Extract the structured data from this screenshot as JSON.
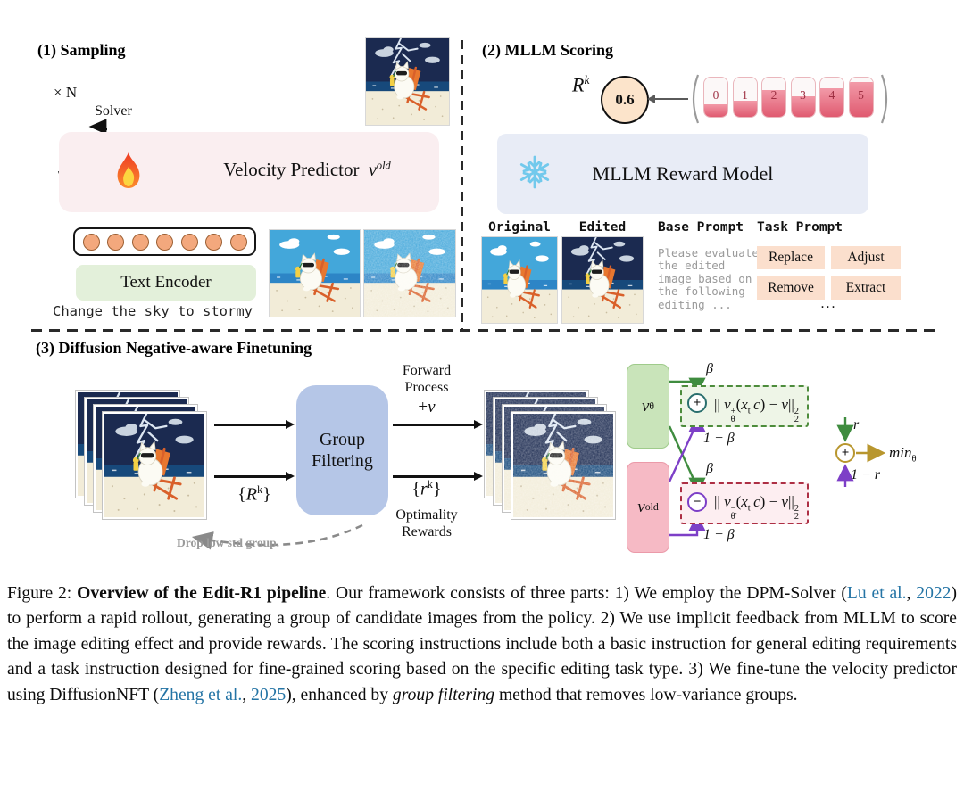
{
  "colors": {
    "velocity_box": "#faeef0",
    "encoder_box": "#e3f0da",
    "token_fill": "#f3a87d",
    "reward_model_box": "#e8ecf6",
    "group_filter_box": "#b5c6e7",
    "vtheta_box": "#c9e4ba",
    "vold_box": "#f6bac5",
    "positive_green": "#4d8c3c",
    "negative_red": "#ad2f44",
    "purple_line": "#7d3fc7",
    "gold": "#b8962e",
    "score_red": "#e05a70",
    "citation_blue": "#2474a5",
    "score_circle_fill": "#fce4cb",
    "task_button": "#fbdfcd"
  },
  "panel1": {
    "title": "(1) Sampling",
    "loop_label": "× N",
    "solver_label": "Solver",
    "velocity_label": "Velocity Predictor",
    "velocity_symbol": [
      {
        "k": "i",
        "t": "v"
      },
      {
        "k": "sup",
        "t": "old"
      }
    ],
    "fire_icon": "flame",
    "tokens_count": 7,
    "text_encoder_label": "Text Encoder",
    "prompt_text": "Change the sky to stormy",
    "top_image": "stormy-clean",
    "bottom_image_left": "day-clean",
    "bottom_image_right": "day-noisy"
  },
  "panel2": {
    "title": "(2) MLLM Scoring",
    "reward_symbol": [
      {
        "k": "i",
        "t": "R"
      },
      {
        "k": "sup",
        "t": "k"
      }
    ],
    "reward_value": "0.6",
    "score_boxes": [
      {
        "label": "0",
        "fill": 32
      },
      {
        "label": "1",
        "fill": 42
      },
      {
        "label": "2",
        "fill": 68
      },
      {
        "label": "3",
        "fill": 52
      },
      {
        "label": "4",
        "fill": 72
      },
      {
        "label": "5",
        "fill": 88
      }
    ],
    "reward_model_label": "MLLM Reward Model",
    "snowflake_icon": "snowflake",
    "original_label": "Original",
    "edited_label": "Edited",
    "original_image": "day-clean",
    "edited_image": "stormy-clean",
    "base_prompt_label": "Base Prompt",
    "base_prompt_text": "Please evaluate\nthe edited\nimage based on\nthe following\nediting ...",
    "task_prompt_label": "Task Prompt",
    "task_buttons": [
      "Replace",
      "Adjust",
      "Remove",
      "Extract"
    ],
    "task_more": "..."
  },
  "panel3": {
    "title": "(3) Diffusion Negative-aware Finetuning",
    "input_stack": "stormy-clean",
    "noised_stack": "stormy-noisy",
    "group_filtering_label": "Group Filtering",
    "rewards_in": [
      {
        "k": "n",
        "t": "{"
      },
      {
        "k": "i",
        "t": "R"
      },
      {
        "k": "sup",
        "t": "k"
      },
      {
        "k": "n",
        "t": "}"
      }
    ],
    "forward_label": "Forward Process",
    "plus_v": [
      {
        "k": "n",
        "t": "+"
      },
      {
        "k": "i",
        "t": "v"
      }
    ],
    "rewards_out": [
      {
        "k": "n",
        "t": "{"
      },
      {
        "k": "i",
        "t": "r"
      },
      {
        "k": "sup",
        "t": "k"
      },
      {
        "k": "n",
        "t": "}"
      }
    ],
    "optimality_label": "Optimality Rewards",
    "drop_label": "Drop low std group.",
    "vtheta": [
      {
        "k": "i",
        "t": "v"
      },
      {
        "k": "sub",
        "t": "θ"
      }
    ],
    "vold": [
      {
        "k": "i",
        "t": "v"
      },
      {
        "k": "sup",
        "t": "old"
      }
    ],
    "beta": "β",
    "one_minus_beta": "1 − β",
    "formula_pos": [
      {
        "k": "n",
        "t": "|| "
      },
      {
        "k": "i",
        "t": "v"
      },
      {
        "k": "ss",
        "up": "+",
        "dn": "θ"
      },
      {
        "k": "n",
        "t": "("
      },
      {
        "k": "i",
        "t": "x"
      },
      {
        "k": "sub",
        "t": "t"
      },
      {
        "k": "n",
        "t": "|"
      },
      {
        "k": "i",
        "t": "c"
      },
      {
        "k": "n",
        "t": ") − "
      },
      {
        "k": "i",
        "t": "v"
      },
      {
        "k": "n",
        "t": "||"
      },
      {
        "k": "ss",
        "up": "2",
        "dn": "2"
      }
    ],
    "formula_neg": [
      {
        "k": "n",
        "t": "|| "
      },
      {
        "k": "i",
        "t": "v"
      },
      {
        "k": "ss",
        "up": "−",
        "dn": "θ̄"
      },
      {
        "k": "n",
        "t": "("
      },
      {
        "k": "i",
        "t": "x"
      },
      {
        "k": "sub",
        "t": "t"
      },
      {
        "k": "n",
        "t": "|"
      },
      {
        "k": "i",
        "t": "c"
      },
      {
        "k": "n",
        "t": ") − "
      },
      {
        "k": "i",
        "t": "v"
      },
      {
        "k": "n",
        "t": "||"
      },
      {
        "k": "ss",
        "up": "2",
        "dn": "2"
      }
    ],
    "r_label": "r",
    "one_minus_r": "1 − r",
    "min_label": [
      {
        "k": "i",
        "t": "min"
      },
      {
        "k": "sub",
        "t": "θ"
      }
    ],
    "plus_op": "+",
    "minus_op": "−"
  },
  "caption": {
    "segments": [
      {
        "t": "Figure 2: ",
        "s": "n"
      },
      {
        "t": "Overview of the Edit-R1 pipeline",
        "s": "b"
      },
      {
        "t": ". Our framework consists of three parts: 1) We employ the DPM-Solver (",
        "s": "n"
      },
      {
        "t": "Lu et al.",
        "s": "c"
      },
      {
        "t": ", ",
        "s": "n"
      },
      {
        "t": "2022",
        "s": "c"
      },
      {
        "t": ") to perform a rapid rollout, generating a group of candidate images from the policy. 2) We use implicit feedback from MLLM to score the image editing effect and provide rewards. The scoring instructions include both a basic instruction for general editing requirements and a task instruction designed for fine-grained scoring based on the specific editing task type. 3) We fine-tune the velocity predictor using DiffusionNFT (",
        "s": "n"
      },
      {
        "t": "Zheng et al.",
        "s": "c"
      },
      {
        "t": ", ",
        "s": "n"
      },
      {
        "t": "2025",
        "s": "c"
      },
      {
        "t": "), enhanced by ",
        "s": "n"
      },
      {
        "t": "group filtering",
        "s": "i"
      },
      {
        "t": " method that removes low-variance groups.",
        "s": "n"
      }
    ]
  }
}
